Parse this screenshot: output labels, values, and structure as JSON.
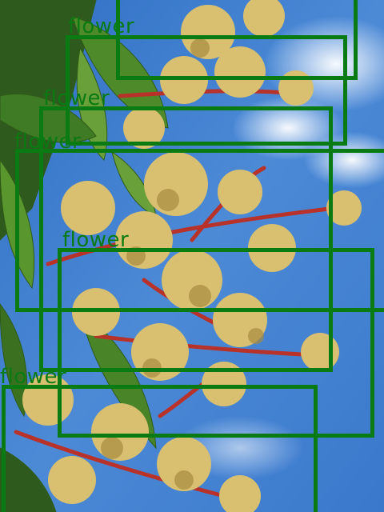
{
  "annotation": {
    "box_color": "#0a7a12",
    "label_color": "#0a7a12",
    "detections": [
      {
        "label": "flower"
      },
      {
        "label": "flower"
      },
      {
        "label": "flower"
      },
      {
        "label": "flower"
      },
      {
        "label": "flower"
      },
      {
        "label": "flower"
      }
    ]
  },
  "scene": {
    "sky_color": "#3f7fd0",
    "leaf_color": "#4f8a2a",
    "stem_color": "#b8322a",
    "blossom_color": "#d8c070"
  }
}
